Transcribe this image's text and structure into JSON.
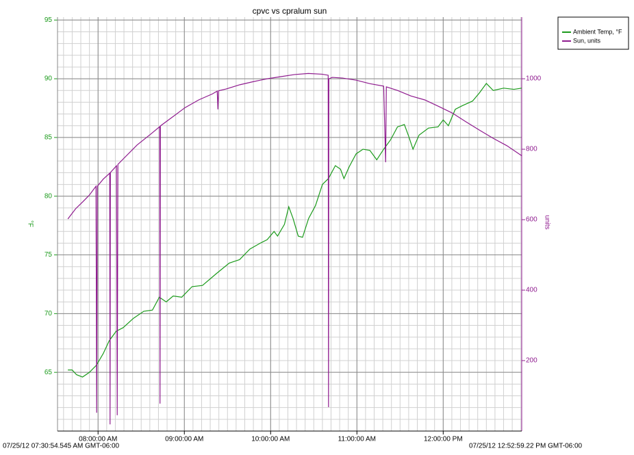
{
  "chart_data": {
    "type": "line",
    "title": "cpvc vs cpralum sun",
    "y_label": "°F",
    "y2_label": "units",
    "xlim": [
      7.53,
      12.91
    ],
    "xticks": [
      {
        "value": 8,
        "label": "08:00:00 AM"
      },
      {
        "value": 9,
        "label": "09:00:00 AM"
      },
      {
        "value": 10,
        "label": "10:00:00 AM"
      },
      {
        "value": 11,
        "label": "11:00:00 AM"
      },
      {
        "value": 12,
        "label": "12:00:00 PM"
      }
    ],
    "ylim": [
      60,
      95.25
    ],
    "yticks": [
      65,
      70,
      75,
      80,
      85,
      90,
      95
    ],
    "y2lim": [
      0,
      1175
    ],
    "y2ticks": [
      200,
      400,
      600,
      800,
      1000
    ],
    "grid": true,
    "legend": "right",
    "series": [
      {
        "name": "Ambient Temp, °F",
        "color": "#1a9a1a",
        "axis": "y",
        "x": [
          7.65,
          7.7,
          7.75,
          7.82,
          7.9,
          7.98,
          8.06,
          8.13,
          8.21,
          8.29,
          8.41,
          8.53,
          8.63,
          8.71,
          8.79,
          8.87,
          8.97,
          9.09,
          9.21,
          9.37,
          9.52,
          9.64,
          9.76,
          9.88,
          9.96,
          10.04,
          10.08,
          10.16,
          10.21,
          10.26,
          10.32,
          10.37,
          10.44,
          10.52,
          10.6,
          10.67,
          10.75,
          10.81,
          10.85,
          10.91,
          10.99,
          11.07,
          11.15,
          11.23,
          11.31,
          11.39,
          11.47,
          11.55,
          11.6,
          11.65,
          11.72,
          11.83,
          11.94,
          12.0,
          12.06,
          12.14,
          12.22,
          12.34,
          12.42,
          12.5,
          12.58,
          12.7,
          12.82,
          12.91
        ],
        "values": [
          65.2,
          65.2,
          64.8,
          64.6,
          65.0,
          65.6,
          66.6,
          67.7,
          68.5,
          68.8,
          69.6,
          70.2,
          70.3,
          71.4,
          71.0,
          71.5,
          71.4,
          72.3,
          72.4,
          73.4,
          74.3,
          74.6,
          75.5,
          76.0,
          76.3,
          77.0,
          76.6,
          77.6,
          79.1,
          78.1,
          76.6,
          76.5,
          78.1,
          79.2,
          81.0,
          81.5,
          82.6,
          82.3,
          81.5,
          82.5,
          83.6,
          84.0,
          83.9,
          83.1,
          84.0,
          84.8,
          85.9,
          86.1,
          85.1,
          84.0,
          85.2,
          85.8,
          85.9,
          86.5,
          86.0,
          87.4,
          87.7,
          88.1,
          88.8,
          89.6,
          89.0,
          89.2,
          89.1,
          89.2
        ]
      },
      {
        "name": "Sun, units",
        "color": "#8e1a8e",
        "axis": "y2",
        "x": [
          7.65,
          7.74,
          7.82,
          7.9,
          7.976,
          7.984,
          7.992,
          8.06,
          8.135,
          8.139,
          8.143,
          8.214,
          8.222,
          8.23,
          8.294,
          8.452,
          8.611,
          8.714,
          8.718,
          8.722,
          8.849,
          9.008,
          9.167,
          9.325,
          9.381,
          9.389,
          9.397,
          9.484,
          9.643,
          9.802,
          9.96,
          10.119,
          10.278,
          10.437,
          10.595,
          10.667,
          10.671,
          10.675,
          10.714,
          10.833,
          10.992,
          11.151,
          11.31,
          11.333,
          11.341,
          11.468,
          11.627,
          11.786,
          11.944,
          12.103,
          12.262,
          12.421,
          12.579,
          12.738,
          12.913
        ],
        "values": [
          602,
          631,
          650,
          670,
          695,
          52,
          695,
          715,
          732,
          19,
          734,
          753,
          45,
          757,
          773,
          812,
          843,
          864,
          78,
          866,
          889,
          918,
          940,
          957,
          965,
          913,
          966,
          971,
          983,
          992,
          1000,
          1006,
          1012,
          1015,
          1013,
          1010,
          68,
          1000,
          1004,
          1002,
          996,
          986,
          979,
          763,
          977,
          967,
          951,
          940,
          922,
          903,
          878,
          854,
          831,
          810,
          781
        ]
      }
    ]
  },
  "footer": {
    "start": "07/25/12 07:30:54.545 AM GMT-06:00",
    "end": "07/25/12 12:52:59.22 PM GMT-06:00"
  }
}
